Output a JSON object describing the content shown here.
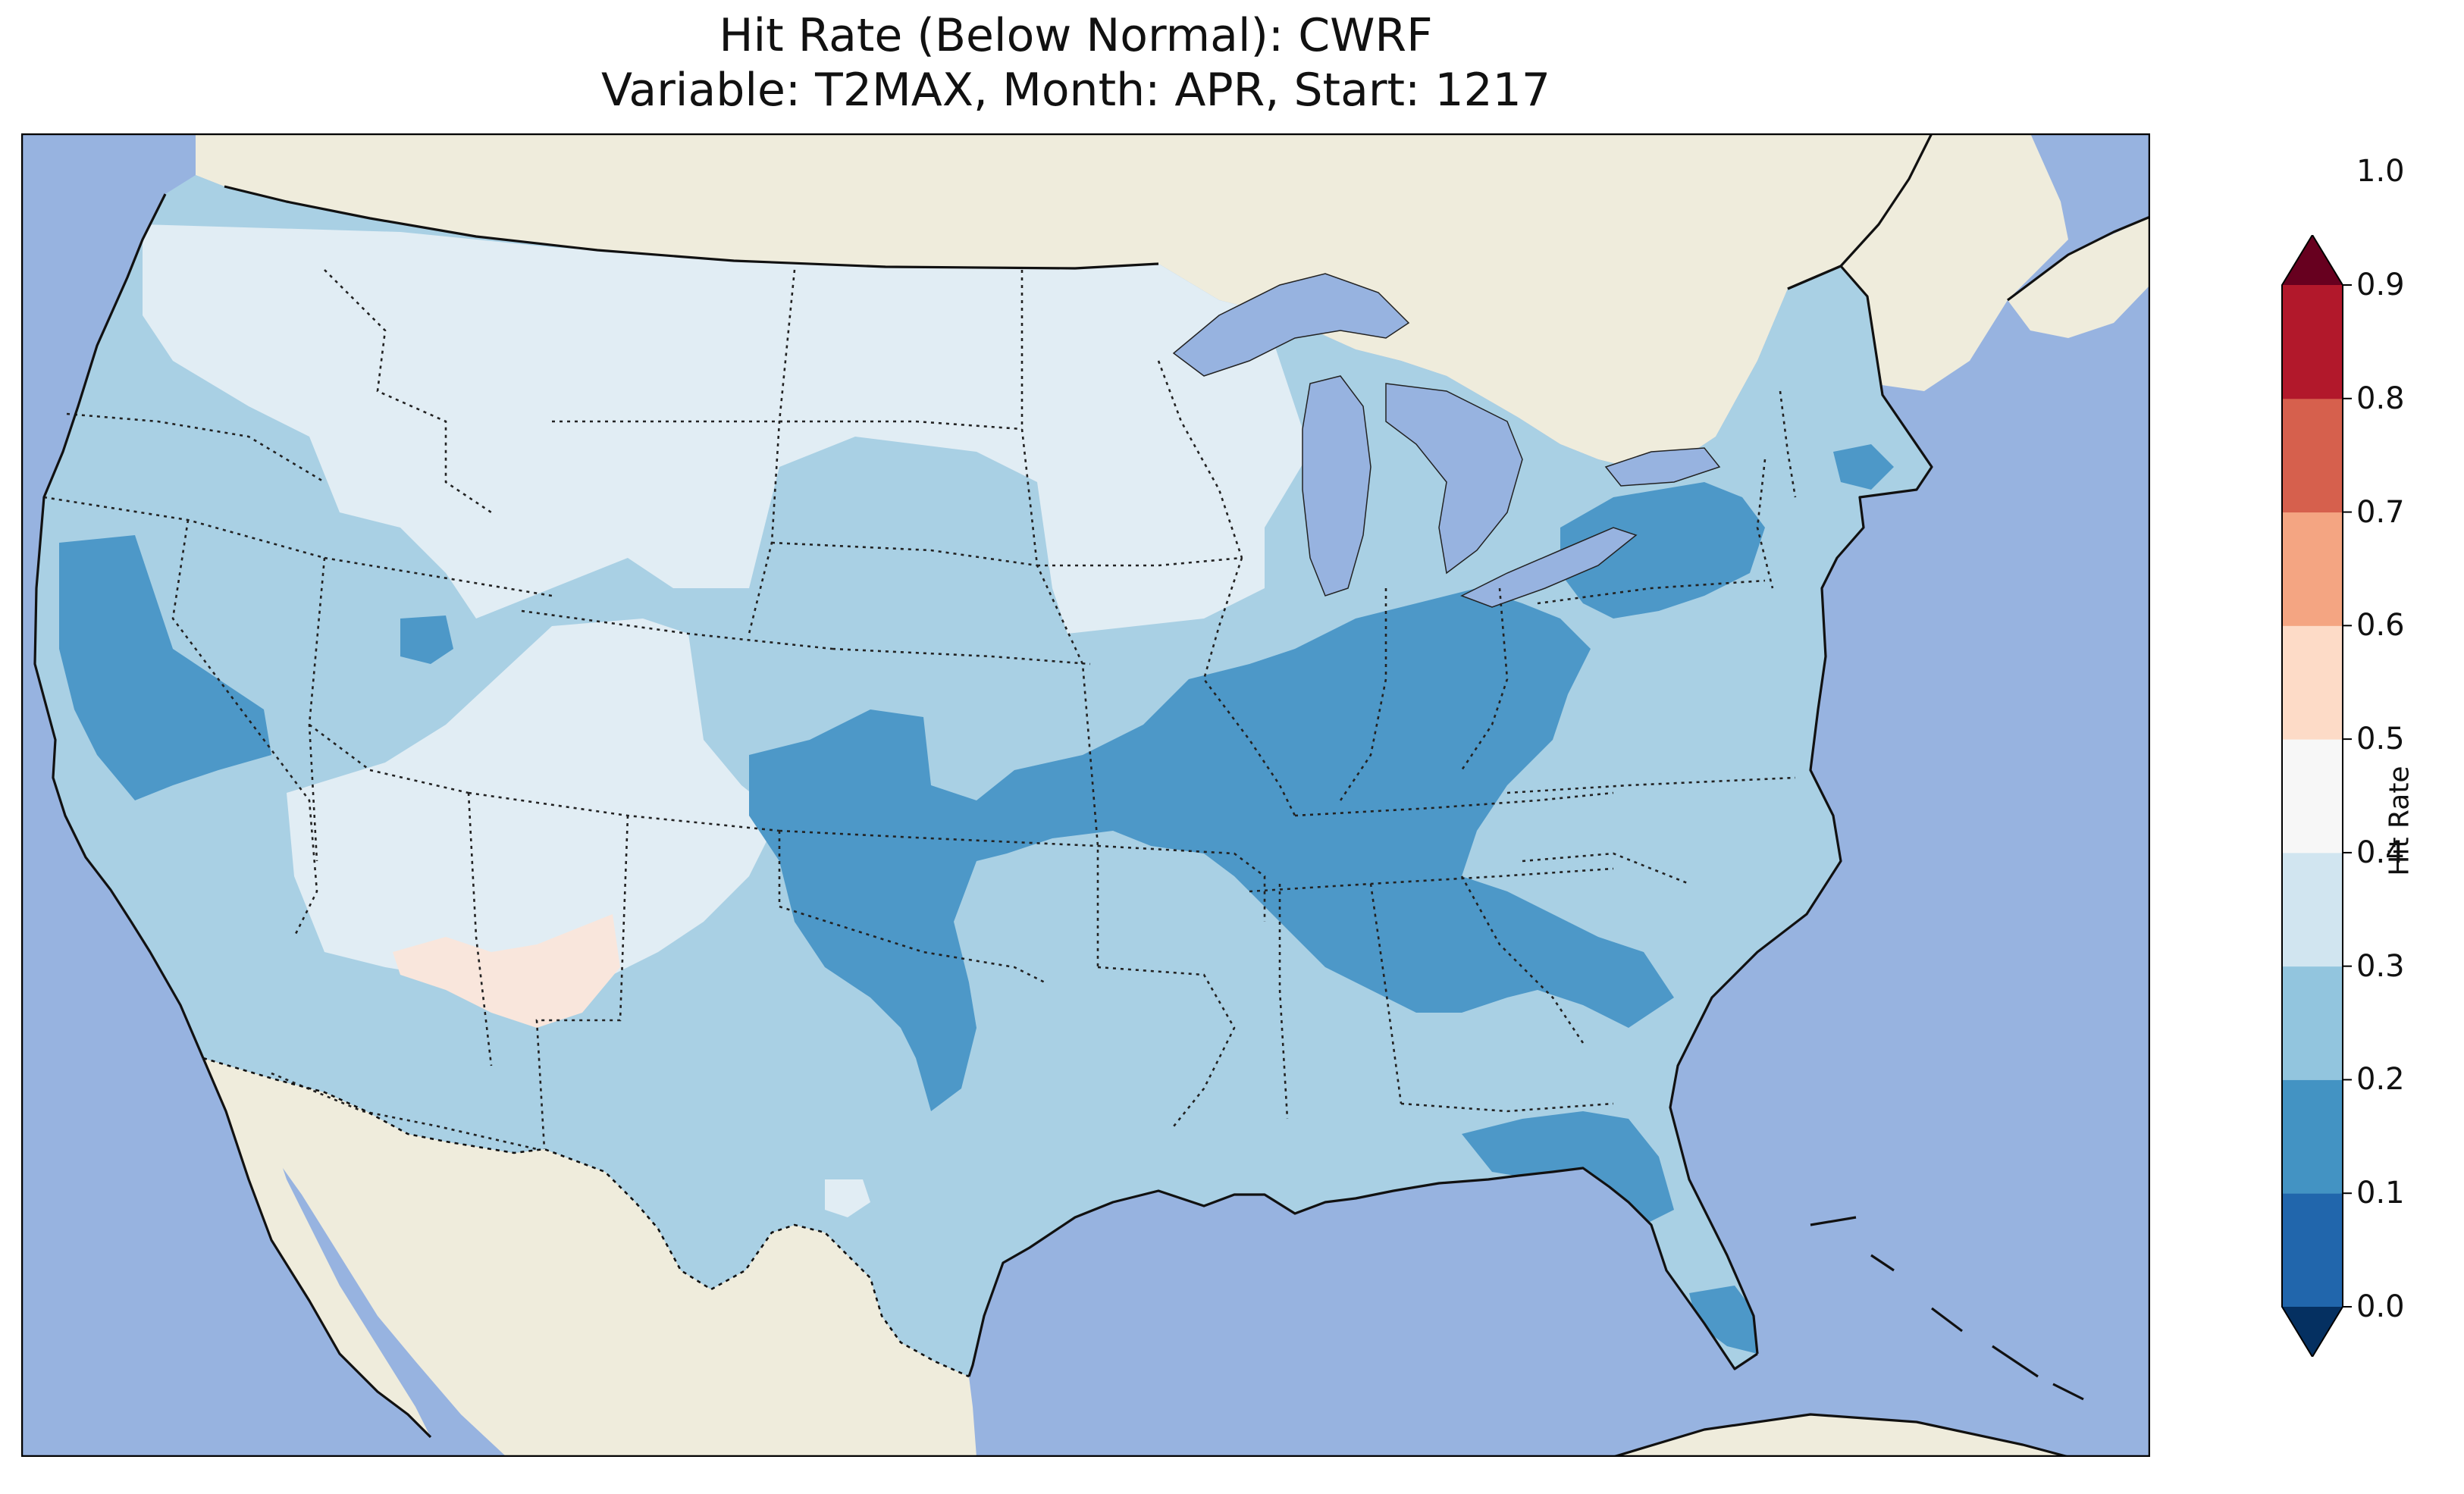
{
  "title": {
    "line1": "Hit Rate (Below Normal): CWRF",
    "line2": "Variable: T2MAX, Month: APR, Start: 1217"
  },
  "colors": {
    "ocean": "#97b3e0",
    "land": "#efecdc",
    "bins": [
      "#053061",
      "#2166ac",
      "#4393c3",
      "#92c5de",
      "#d1e5f0",
      "#f7f7f7",
      "#fddbc7",
      "#f4a582",
      "#d6604d",
      "#b2182b",
      "#67001f"
    ],
    "lv_02_03": "#4d98c8",
    "lv_03_04": "#a9d0e4",
    "lv_04_05": "#e1edf4",
    "lv_05_06": "#f9e6dc"
  },
  "colorbar": {
    "label": "Hit Rate",
    "ticks": [
      "0.0",
      "0.1",
      "0.2",
      "0.3",
      "0.4",
      "0.5",
      "0.6",
      "0.7",
      "0.8",
      "0.9",
      "1.0"
    ],
    "extend": "both",
    "cmap": "RdBu_r"
  },
  "map": {
    "projection": "Lambert Conformal",
    "region": "Contiguous United States",
    "features": [
      "coastlines",
      "state borders",
      "country borders",
      "lakes"
    ],
    "field": [
      {
        "area": "Northern Rockies / Montana / Dakotas / Minnesota / Wisconsin / Iowa",
        "level": "0.4-0.5"
      },
      {
        "area": "Pacific Northwest / Great Basin / Northern Plains",
        "level": "0.3-0.4"
      },
      {
        "area": "Southern California / Central Valley",
        "level": "0.2-0.3"
      },
      {
        "area": "Ohio Valley / Tennessee / Kentucky / Missouri / Oklahoma / Georgia",
        "level": "0.2-0.3"
      },
      {
        "area": "Pennsylvania / New York / Massachusetts",
        "level": "0.2-0.3"
      },
      {
        "area": "Arizona / New Mexico",
        "level": "0.4-0.5"
      },
      {
        "area": "Southern Arizona",
        "level": "0.5-0.6"
      },
      {
        "area": "Texas / Gulf Coast / Southeast",
        "level": "0.3-0.4"
      },
      {
        "area": "Florida",
        "level": "0.2-0.3"
      }
    ]
  }
}
